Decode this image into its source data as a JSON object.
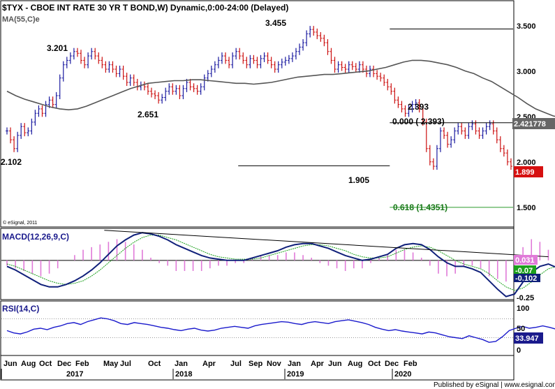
{
  "window": {
    "title": "$TYX - CBOE INT RATE 30 YR T BOND,W) Dynamic,0:00-24:00 (Delayed)"
  },
  "chart_data": {
    "type": "line",
    "price_panel": {
      "indicator_label": "MA(55,C)e",
      "y_ticks": [
        "3.500",
        "3.000",
        "2.500",
        "2.000",
        "1.500"
      ],
      "ylim": [
        1.22,
        3.76
      ],
      "x_range": [
        0,
        162
      ],
      "close_series": [
        2.3,
        2.2,
        2.1,
        2.25,
        2.35,
        2.28,
        2.3,
        2.4,
        2.5,
        2.55,
        2.5,
        2.6,
        2.65,
        2.6,
        2.7,
        2.9,
        3.05,
        3.1,
        3.15,
        3.2,
        3.18,
        3.1,
        3.05,
        3.15,
        3.2,
        3.15,
        3.1,
        3.05,
        3.0,
        3.05,
        3.0,
        2.95,
        3.0,
        2.92,
        2.85,
        2.9,
        2.85,
        2.8,
        2.82,
        2.8,
        2.75,
        2.72,
        2.7,
        2.65,
        2.68,
        2.75,
        2.8,
        2.75,
        2.78,
        2.7,
        2.78,
        2.85,
        2.8,
        2.78,
        2.75,
        2.8,
        2.9,
        2.95,
        3.0,
        3.05,
        3.1,
        3.15,
        3.1,
        3.05,
        3.15,
        3.2,
        3.15,
        3.1,
        3.05,
        3.12,
        3.1,
        3.05,
        3.12,
        3.15,
        3.1,
        3.05,
        3.0,
        3.05,
        3.08,
        3.1,
        3.12,
        3.15,
        3.2,
        3.25,
        3.3,
        3.4,
        3.45,
        3.42,
        3.38,
        3.35,
        3.3,
        3.2,
        3.1,
        3.0,
        3.05,
        3.02,
        3.0,
        3.05,
        3.03,
        3.0,
        3.05,
        3.0,
        2.95,
        3.0,
        2.95,
        2.92,
        2.9,
        2.85,
        2.8,
        2.75,
        2.65,
        2.6,
        2.55,
        2.5,
        2.55,
        2.6,
        2.62,
        2.55,
        2.4,
        2.1,
        1.95,
        1.9,
        2.1,
        2.3,
        2.25,
        2.15,
        2.2,
        2.3,
        2.35,
        2.3,
        2.25,
        2.35,
        2.38,
        2.3,
        2.25,
        2.3,
        2.35,
        2.38,
        2.3,
        2.2,
        2.1,
        2.05,
        1.95,
        1.9
      ],
      "ma_series": [
        2.75,
        2.7,
        2.66,
        2.63,
        2.6,
        2.57,
        2.55,
        2.54,
        2.55,
        2.58,
        2.62,
        2.66,
        2.7,
        2.74,
        2.78,
        2.81,
        2.84,
        2.85,
        2.86,
        2.87,
        2.87,
        2.88,
        2.88,
        2.87,
        2.86,
        2.85,
        2.84,
        2.84,
        2.83,
        2.84,
        2.85,
        2.87,
        2.89,
        2.91,
        2.92,
        2.93,
        2.94,
        2.94,
        2.95,
        2.96,
        2.97,
        2.98,
        3.0,
        3.02,
        3.05,
        3.08,
        3.1,
        3.1,
        3.09,
        3.07,
        3.05,
        3.02,
        2.98,
        2.95,
        2.9,
        2.86,
        2.8,
        2.74,
        2.68,
        2.61,
        2.55,
        2.51,
        2.47,
        2.45,
        2.43,
        2.41
      ],
      "ma_start_index": 0,
      "ma_step": 2.5,
      "fib_lines": [
        {
          "x_start": 109,
          "x_end": 152,
          "y": 3.455
        },
        {
          "x_start": 109,
          "x_end": 162,
          "y": 2.393
        },
        {
          "x_start": 109,
          "x_end": 162,
          "y": 1.4351
        },
        {
          "x_start": 66,
          "x_end": 109,
          "y": 1.905
        }
      ],
      "annotations": [
        "3.455",
        "3.201",
        "2.651",
        "2.102",
        "2.393",
        "0.000 ( 2.393)",
        "1.905",
        "0.618 (1.4351)"
      ],
      "last_tags": [
        "2.421778",
        "1.899"
      ],
      "watermark": "© eSignal, 2011"
    },
    "macd_panel": {
      "indicator_label": "MACD(12,26,9,C)",
      "y_ticks": [
        "0",
        "-0.25"
      ],
      "ylim": [
        -0.32,
        0.26
      ],
      "macd_series": [
        -0.05,
        -0.08,
        -0.12,
        -0.16,
        -0.2,
        -0.22,
        -0.22,
        -0.2,
        -0.17,
        -0.13,
        -0.08,
        -0.02,
        0.05,
        0.12,
        0.17,
        0.21,
        0.23,
        0.22,
        0.2,
        0.17,
        0.13,
        0.1,
        0.07,
        0.04,
        0.02,
        0.01,
        0.0,
        0.0,
        0.0,
        0.02,
        0.04,
        0.06,
        0.08,
        0.11,
        0.13,
        0.14,
        0.14,
        0.12,
        0.1,
        0.07,
        0.04,
        0.02,
        0.0,
        0.01,
        0.03,
        0.05,
        0.1,
        0.13,
        0.14,
        0.13,
        0.09,
        0.03,
        -0.02,
        -0.05,
        -0.05,
        -0.07,
        -0.1,
        -0.17,
        -0.24,
        -0.3,
        -0.28,
        -0.18,
        -0.1,
        -0.05,
        -0.03,
        -0.06,
        -0.1,
        -0.14
      ],
      "signal_series": [
        -0.03,
        -0.05,
        -0.08,
        -0.11,
        -0.14,
        -0.17,
        -0.19,
        -0.2,
        -0.19,
        -0.17,
        -0.13,
        -0.08,
        -0.02,
        0.04,
        0.1,
        0.15,
        0.19,
        0.21,
        0.21,
        0.19,
        0.17,
        0.14,
        0.11,
        0.08,
        0.05,
        0.03,
        0.02,
        0.01,
        0.01,
        0.01,
        0.02,
        0.04,
        0.06,
        0.08,
        0.1,
        0.12,
        0.13,
        0.13,
        0.12,
        0.1,
        0.08,
        0.05,
        0.03,
        0.02,
        0.02,
        0.03,
        0.06,
        0.09,
        0.11,
        0.12,
        0.11,
        0.08,
        0.04,
        0.0,
        -0.03,
        -0.05,
        -0.07,
        -0.11,
        -0.17,
        -0.22,
        -0.25,
        -0.23,
        -0.18,
        -0.12,
        -0.07,
        -0.05,
        -0.07,
        -0.1
      ],
      "step": 2.4,
      "trendline": {
        "x_start": 28,
        "y_start": 0.25,
        "x_end": 154,
        "y_end": 0.03
      },
      "last_tags": [
        "0.031",
        "-0.07",
        "-0.102"
      ]
    },
    "rsi_panel": {
      "indicator_label": "RSI(14,C)",
      "y_ticks": [
        "100",
        "50",
        "0"
      ],
      "ylim": [
        -5,
        105
      ],
      "series": [
        45,
        40,
        38,
        42,
        48,
        50,
        47,
        52,
        55,
        60,
        62,
        58,
        64,
        68,
        72,
        70,
        66,
        60,
        58,
        62,
        60,
        58,
        55,
        52,
        50,
        47,
        45,
        48,
        50,
        46,
        44,
        46,
        50,
        52,
        54,
        52,
        50,
        55,
        58,
        60,
        62,
        64,
        63,
        60,
        58,
        62,
        64,
        62,
        60,
        64,
        66,
        68,
        65,
        62,
        58,
        52,
        48,
        45,
        47,
        44,
        42,
        40,
        38,
        42,
        40,
        36,
        32,
        30,
        28,
        34,
        30,
        26,
        20,
        22,
        32,
        45,
        50,
        54,
        50,
        52,
        55,
        52,
        48,
        52,
        50,
        45,
        40,
        34
      ],
      "step": 1.9,
      "last_tag": "33.947"
    },
    "x_axis": {
      "month_labels": [
        "Jun",
        "Aug",
        "Oct",
        "Dec",
        "Feb",
        "May",
        "Jul",
        "Oct",
        "Jan",
        "Apr",
        "Jul",
        "Sep",
        "Nov",
        "Jan",
        "Apr",
        "Jun",
        "Aug",
        "Oct",
        "Dec",
        "Feb"
      ],
      "year_labels": [
        "2017",
        "2018",
        "2019",
        "2020"
      ]
    }
  },
  "colors": {
    "up_bar": "#1a1aa0",
    "down_bar": "#cc1010",
    "ma_line": "#555555",
    "fib_support": "#2a9a2a",
    "macd_line": "#10207a",
    "signal_line": "#1ca01c",
    "histogram": "#e07ad8",
    "rsi_line": "#1a1acc",
    "tag_blue": "#1a1a8c",
    "tag_red": "#d61010",
    "tag_green": "#1ca01c"
  },
  "footer": {
    "credit": "Published by eSignal | www.esignal.com"
  }
}
